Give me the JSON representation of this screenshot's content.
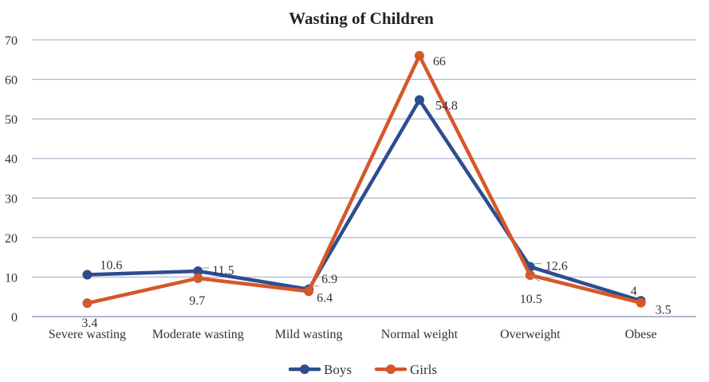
{
  "chart_data": {
    "type": "line",
    "title": "Wasting of Children",
    "categories": [
      "Severe wasting",
      "Moderate wasting",
      "Mild wasting",
      "Normal weight",
      "Overweight",
      "Obese"
    ],
    "series": [
      {
        "name": "Boys",
        "color": "#2E4D8F",
        "values": [
          10.6,
          11.5,
          6.9,
          54.8,
          12.6,
          4
        ]
      },
      {
        "name": "Girls",
        "color": "#D4582A",
        "values": [
          3.4,
          9.7,
          6.4,
          66,
          10.5,
          3.5
        ]
      }
    ],
    "ylim": [
      0,
      70
    ],
    "yticks": [
      0,
      10,
      20,
      30,
      40,
      50,
      60,
      70
    ],
    "grid": true,
    "legend": "bottom"
  }
}
